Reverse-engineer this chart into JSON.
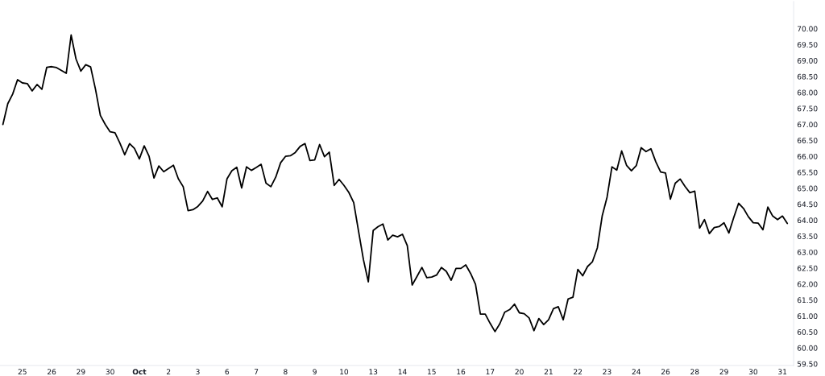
{
  "chart_data": {
    "type": "line",
    "categories": [
      null,
      null,
      null,
      null,
      "25",
      null,
      null,
      null,
      null,
      null,
      "26",
      null,
      null,
      null,
      null,
      null,
      "29",
      null,
      null,
      null,
      null,
      null,
      "30",
      null,
      null,
      null,
      null,
      null,
      "Oct",
      null,
      null,
      null,
      null,
      null,
      "2",
      null,
      null,
      null,
      null,
      null,
      "3",
      null,
      null,
      null,
      null,
      null,
      "6",
      null,
      null,
      null,
      null,
      null,
      "7",
      null,
      null,
      null,
      null,
      null,
      "8",
      null,
      null,
      null,
      null,
      null,
      "9",
      null,
      null,
      null,
      null,
      null,
      "10",
      null,
      null,
      null,
      null,
      null,
      "13",
      null,
      null,
      null,
      null,
      null,
      "14",
      null,
      null,
      null,
      null,
      null,
      "15",
      null,
      null,
      null,
      null,
      null,
      "16",
      null,
      null,
      null,
      null,
      null,
      "17",
      null,
      null,
      null,
      null,
      null,
      "20",
      null,
      null,
      null,
      null,
      null,
      "21",
      null,
      null,
      null,
      null,
      null,
      "22",
      null,
      null,
      null,
      null,
      null,
      "23",
      null,
      null,
      null,
      null,
      null,
      "24",
      null,
      null,
      null,
      null,
      null,
      "26",
      null,
      null,
      null,
      null,
      null,
      "28",
      null,
      null,
      null,
      null,
      null,
      "29",
      null,
      null,
      null,
      null,
      null,
      "30",
      null,
      null,
      null,
      null,
      null,
      "31",
      null
    ],
    "series": [
      {
        "color": "#000000",
        "values": [
          67.0,
          67.65,
          67.95,
          68.4,
          68.3,
          68.28,
          68.05,
          68.25,
          68.1,
          68.79,
          68.81,
          68.78,
          68.69,
          68.6,
          69.8,
          69.05,
          68.67,
          68.87,
          68.8,
          68.1,
          67.28,
          67.0,
          66.77,
          66.74,
          66.42,
          66.05,
          66.4,
          66.25,
          65.92,
          66.33,
          66.0,
          65.32,
          65.7,
          65.52,
          65.62,
          65.72,
          65.3,
          65.05,
          64.3,
          64.33,
          64.43,
          64.6,
          64.9,
          64.65,
          64.7,
          64.42,
          65.3,
          65.55,
          65.66,
          65.01,
          65.67,
          65.56,
          65.65,
          65.75,
          65.16,
          65.05,
          65.35,
          65.8,
          66.0,
          66.02,
          66.12,
          66.31,
          66.4,
          65.87,
          65.89,
          66.37,
          65.99,
          66.13,
          65.09,
          65.28,
          65.09,
          64.87,
          64.55,
          63.65,
          62.76,
          62.07,
          63.68,
          63.8,
          63.88,
          63.38,
          63.53,
          63.48,
          63.56,
          63.2,
          61.97,
          62.24,
          62.52,
          62.2,
          62.22,
          62.28,
          62.52,
          62.4,
          62.12,
          62.49,
          62.49,
          62.6,
          62.33,
          61.99,
          61.06,
          61.06,
          60.77,
          60.51,
          60.76,
          61.12,
          61.2,
          61.37,
          61.1,
          61.07,
          60.94,
          60.54,
          60.92,
          60.73,
          60.88,
          61.23,
          61.29,
          60.88,
          61.53,
          61.59,
          62.46,
          62.26,
          62.55,
          62.7,
          63.13,
          64.13,
          64.72,
          65.67,
          65.57,
          66.17,
          65.72,
          65.55,
          65.71,
          66.27,
          66.15,
          66.24,
          65.83,
          65.51,
          65.48,
          64.66,
          65.16,
          65.29,
          65.06,
          64.86,
          64.91,
          63.75,
          64.02,
          63.58,
          63.77,
          63.8,
          63.92,
          63.6,
          64.08,
          64.53,
          64.37,
          64.11,
          63.92,
          63.91,
          63.7,
          64.41,
          64.13,
          64.02,
          64.13,
          63.9
        ]
      }
    ],
    "ylim": [
      59.45,
      70.85
    ],
    "yticks": [
      {
        "value": 59.5,
        "label": "59.50"
      },
      {
        "value": 60,
        "label": "60.00"
      },
      {
        "value": 60.5,
        "label": "60.50"
      },
      {
        "value": 61,
        "label": "61.00"
      },
      {
        "value": 61.5,
        "label": "61.50"
      },
      {
        "value": 62,
        "label": "62.00"
      },
      {
        "value": 62.5,
        "label": "62.50"
      },
      {
        "value": 63,
        "label": "63.00"
      },
      {
        "value": 63.5,
        "label": "63.50"
      },
      {
        "value": 64,
        "label": "64.00"
      },
      {
        "value": 64.5,
        "label": "64.50"
      },
      {
        "value": 65,
        "label": "65.00"
      },
      {
        "value": 65.5,
        "label": "65.50"
      },
      {
        "value": 66,
        "label": "66.00"
      },
      {
        "value": 66.5,
        "label": "66.50"
      },
      {
        "value": 67,
        "label": "67.00"
      },
      {
        "value": 67.5,
        "label": "67.50"
      },
      {
        "value": 68,
        "label": "68.00"
      },
      {
        "value": 68.5,
        "label": "68.50"
      },
      {
        "value": 69,
        "label": "69.00"
      },
      {
        "value": 69.5,
        "label": "69.50"
      },
      {
        "value": 70,
        "label": "70.00"
      }
    ],
    "grid": false,
    "legend": false
  }
}
